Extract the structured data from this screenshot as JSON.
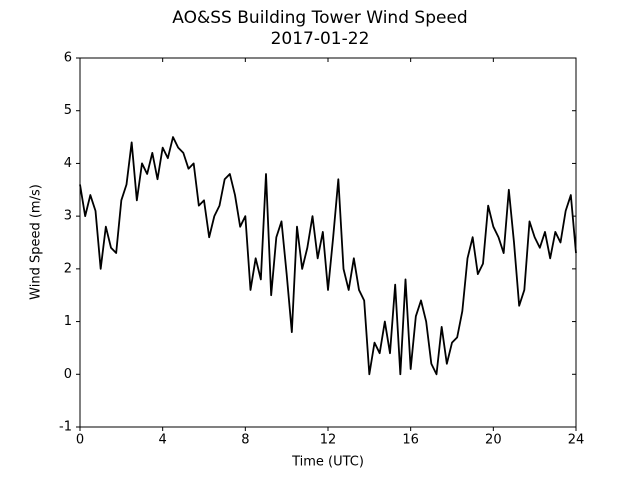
{
  "chart_data": {
    "type": "line",
    "title": "AO&SS Building Tower Wind Speed",
    "subtitle": "2017-01-22",
    "x_label": "Time (UTC)",
    "y_label": "Wind Speed (m/s)",
    "x": [
      0,
      0.25,
      0.5,
      0.75,
      1,
      1.25,
      1.5,
      1.75,
      2,
      2.25,
      2.5,
      2.75,
      3,
      3.25,
      3.5,
      3.75,
      4,
      4.25,
      4.5,
      4.75,
      5,
      5.25,
      5.5,
      5.75,
      6,
      6.25,
      6.5,
      6.75,
      7,
      7.25,
      7.5,
      7.75,
      8,
      8.25,
      8.5,
      8.75,
      9,
      9.25,
      9.5,
      9.75,
      10,
      10.25,
      10.5,
      10.75,
      11,
      11.25,
      11.5,
      11.75,
      12,
      12.25,
      12.5,
      12.75,
      13,
      13.25,
      13.5,
      13.75,
      14,
      14.25,
      14.5,
      14.75,
      15,
      15.25,
      15.5,
      15.75,
      16,
      16.25,
      16.5,
      16.75,
      17,
      17.25,
      17.5,
      17.75,
      18,
      18.25,
      18.5,
      18.75,
      19,
      19.25,
      19.5,
      19.75,
      20,
      20.25,
      20.5,
      20.75,
      21,
      21.25,
      21.5,
      21.75,
      22,
      22.25,
      22.5,
      22.75,
      23,
      23.25,
      23.5,
      23.75,
      24
    ],
    "series": [
      {
        "name": "Wind Speed",
        "color": "#000000",
        "values": [
          3.6,
          3.0,
          3.4,
          3.1,
          2.0,
          2.8,
          2.4,
          2.3,
          3.3,
          3.6,
          4.4,
          3.3,
          4.0,
          3.8,
          4.2,
          3.7,
          4.3,
          4.1,
          4.5,
          4.3,
          4.2,
          3.9,
          4.0,
          3.2,
          3.3,
          2.6,
          3.0,
          3.2,
          3.7,
          3.8,
          3.4,
          2.8,
          3.0,
          1.6,
          2.2,
          1.8,
          3.8,
          1.5,
          2.6,
          2.9,
          1.9,
          0.8,
          2.8,
          2.0,
          2.4,
          3.0,
          2.2,
          2.7,
          1.6,
          2.6,
          3.7,
          2.0,
          1.6,
          2.2,
          1.6,
          1.4,
          0.0,
          0.6,
          0.4,
          1.0,
          0.4,
          1.7,
          0.0,
          1.8,
          0.1,
          1.1,
          1.4,
          1.0,
          0.2,
          0.0,
          0.9,
          0.2,
          0.6,
          0.7,
          1.2,
          2.2,
          2.6,
          1.9,
          2.1,
          3.2,
          2.8,
          2.6,
          2.3,
          3.5,
          2.5,
          1.3,
          1.6,
          2.9,
          2.6,
          2.4,
          2.7,
          2.2,
          2.7,
          2.5,
          3.1,
          3.4,
          2.3
        ]
      }
    ],
    "xlim": [
      0,
      24
    ],
    "xticks": [
      0,
      4,
      8,
      12,
      16,
      20,
      24
    ],
    "ylim": [
      -1,
      6
    ],
    "yticks": [
      -1,
      0,
      1,
      2,
      3,
      4,
      5,
      6
    ]
  }
}
